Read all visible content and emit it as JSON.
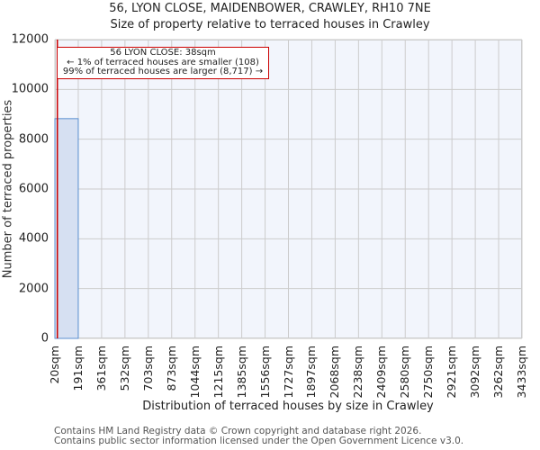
{
  "header": {
    "title": "56, LYON CLOSE, MAIDENBOWER, CRAWLEY, RH10 7NE",
    "subtitle": "Size of property relative to terraced houses in Crawley"
  },
  "annotation": {
    "line1": "56 LYON CLOSE: 38sqm",
    "line2": "← 1% of terraced houses are smaller (108)",
    "line3": "99% of terraced houses are larger (8,717) →"
  },
  "footer": {
    "line1": "Contains HM Land Registry data © Crown copyright and database right 2026.",
    "line2": "Contains public sector information licensed under the Open Government Licence v3.0."
  },
  "colors": {
    "bar_fill": "#d6e0f2",
    "bar_edge": "#5b8fd0",
    "marker_line": "#cc0000",
    "plot_bg": "#f2f5fc",
    "grid": "#cccccc"
  },
  "chart_data": {
    "type": "bar",
    "title": "56, LYON CLOSE, MAIDENBOWER, CRAWLEY, RH10 7NE",
    "subtitle": "Size of property relative to terraced houses in Crawley",
    "xlabel": "Distribution of terraced houses by size in Crawley",
    "ylabel": "Number of terraced properties",
    "ylim": [
      0,
      12000
    ],
    "yticks": [
      0,
      2000,
      4000,
      6000,
      8000,
      10000,
      12000
    ],
    "categories": [
      "20sqm",
      "191sqm",
      "361sqm",
      "532sqm",
      "703sqm",
      "873sqm",
      "1044sqm",
      "1215sqm",
      "1385sqm",
      "1556sqm",
      "1727sqm",
      "1897sqm",
      "2068sqm",
      "2238sqm",
      "2409sqm",
      "2580sqm",
      "2750sqm",
      "2921sqm",
      "3092sqm",
      "3262sqm",
      "3433sqm"
    ],
    "values": [
      8825,
      0,
      0,
      0,
      0,
      0,
      0,
      0,
      0,
      0,
      0,
      0,
      0,
      0,
      0,
      0,
      0,
      0,
      0,
      0
    ],
    "bin_edges_sqm": [
      20,
      191,
      361,
      532,
      703,
      873,
      1044,
      1215,
      1385,
      1556,
      1727,
      1897,
      2068,
      2238,
      2409,
      2580,
      2750,
      2921,
      3092,
      3262,
      3433
    ],
    "marker": {
      "value_sqm": 38,
      "label": "56 LYON CLOSE: 38sqm"
    },
    "grid": true,
    "legend": null
  }
}
